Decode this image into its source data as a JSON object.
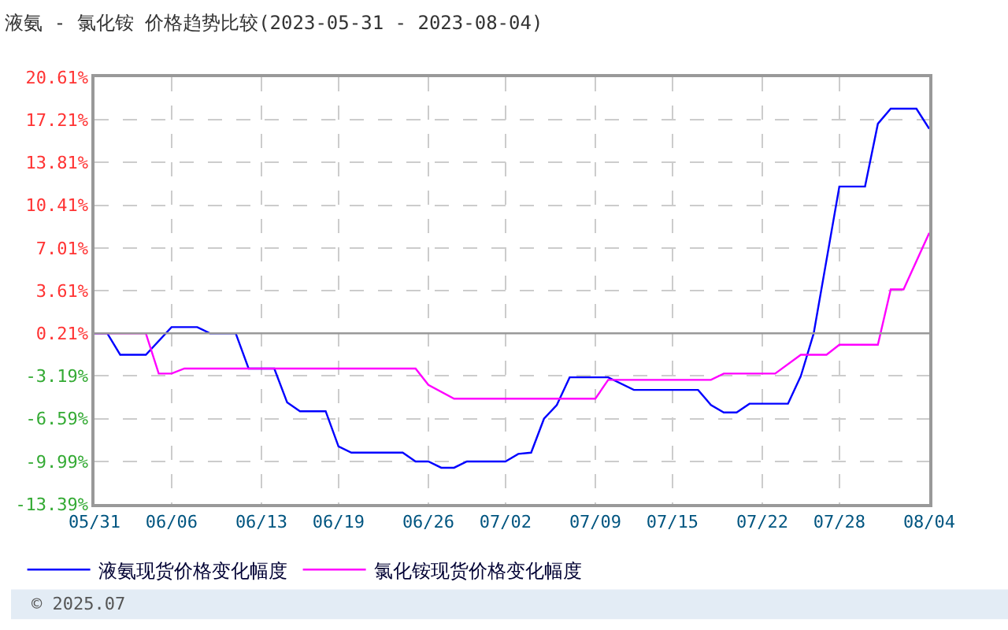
{
  "chart_data": {
    "type": "line",
    "title": "液氨 - 氯化铵 价格趋势比较(2023-05-31 - 2023-08-04)",
    "series": [
      {
        "name": "液氨现货价格变化幅度",
        "color": "#0000ff",
        "x": [
          "2023-05-31",
          "2023-06-01",
          "2023-06-02",
          "2023-06-04",
          "2023-06-06",
          "2023-06-08",
          "2023-06-09",
          "2023-06-11",
          "2023-06-12",
          "2023-06-14",
          "2023-06-15",
          "2023-06-16",
          "2023-06-18",
          "2023-06-19",
          "2023-06-20",
          "2023-06-24",
          "2023-06-25",
          "2023-06-26",
          "2023-06-27",
          "2023-06-28",
          "2023-06-29",
          "2023-07-02",
          "2023-07-03",
          "2023-07-04",
          "2023-07-05",
          "2023-07-06",
          "2023-07-07",
          "2023-07-10",
          "2023-07-12",
          "2023-07-17",
          "2023-07-18",
          "2023-07-19",
          "2023-07-20",
          "2023-07-21",
          "2023-07-24",
          "2023-07-25",
          "2023-07-26",
          "2023-07-28",
          "2023-07-30",
          "2023-07-31",
          "2023-08-01",
          "2023-08-03",
          "2023-08-04"
        ],
        "values": [
          0.2,
          0.2,
          -1.5,
          -1.5,
          0.7,
          0.7,
          0.2,
          0.2,
          -2.6,
          -2.6,
          -5.3,
          -6.0,
          -6.0,
          -8.8,
          -9.3,
          -9.3,
          -10.0,
          -10.0,
          -10.5,
          -10.5,
          -10.0,
          -10.0,
          -9.4,
          -9.3,
          -6.6,
          -5.5,
          -3.3,
          -3.3,
          -4.3,
          -4.3,
          -5.5,
          -6.1,
          -6.1,
          -5.4,
          -5.4,
          -3.2,
          0.2,
          11.9,
          11.9,
          16.9,
          18.1,
          18.1,
          16.5
        ]
      },
      {
        "name": "氯化铵现货价格变化幅度",
        "color": "#ff00ff",
        "x": [
          "2023-05-31",
          "2023-06-04",
          "2023-06-05",
          "2023-06-06",
          "2023-06-07",
          "2023-06-25",
          "2023-06-26",
          "2023-06-28",
          "2023-07-09",
          "2023-07-10",
          "2023-07-18",
          "2023-07-19",
          "2023-07-23",
          "2023-07-25",
          "2023-07-27",
          "2023-07-28",
          "2023-07-31",
          "2023-08-01",
          "2023-08-02",
          "2023-08-04"
        ],
        "values": [
          0.2,
          0.2,
          -3.0,
          -3.0,
          -2.6,
          -2.6,
          -3.9,
          -5.0,
          -5.0,
          -3.5,
          -3.5,
          -3.0,
          -3.0,
          -1.5,
          -1.5,
          -0.7,
          -0.7,
          3.7,
          3.7,
          8.2
        ]
      }
    ],
    "xlim": [
      "2023-05-31",
      "2023-08-04"
    ],
    "xticks": [
      {
        "value": "2023-05-31",
        "label": "05/31"
      },
      {
        "value": "2023-06-06",
        "label": "06/06"
      },
      {
        "value": "2023-06-13",
        "label": "06/13"
      },
      {
        "value": "2023-06-19",
        "label": "06/19"
      },
      {
        "value": "2023-06-26",
        "label": "06/26"
      },
      {
        "value": "2023-07-02",
        "label": "07/02"
      },
      {
        "value": "2023-07-09",
        "label": "07/09"
      },
      {
        "value": "2023-07-15",
        "label": "07/15"
      },
      {
        "value": "2023-07-22",
        "label": "07/22"
      },
      {
        "value": "2023-07-28",
        "label": "07/28"
      },
      {
        "value": "2023-08-04",
        "label": "08/04"
      }
    ],
    "ylim": [
      -13.39,
      20.61
    ],
    "yticks": [
      {
        "value": -13.39,
        "label": "-13.39%"
      },
      {
        "value": -9.99,
        "label": "-9.99%"
      },
      {
        "value": -6.59,
        "label": "-6.59%"
      },
      {
        "value": -3.19,
        "label": "-3.19%"
      },
      {
        "value": 0.21,
        "label": "0.21%"
      },
      {
        "value": 3.61,
        "label": "3.61%"
      },
      {
        "value": 7.01,
        "label": "7.01%"
      },
      {
        "value": 10.41,
        "label": "10.41%"
      },
      {
        "value": 13.81,
        "label": "13.81%"
      },
      {
        "value": 17.21,
        "label": "17.21%"
      },
      {
        "value": 20.61,
        "label": "20.61%"
      }
    ],
    "ref_lines": [
      {
        "axis": "y",
        "value": 0.21,
        "color": "#999999"
      }
    ],
    "annotations": [
      "© 2025.07"
    ],
    "grid": true,
    "legend": "bottom",
    "marker": "none",
    "line_style": "solid"
  }
}
